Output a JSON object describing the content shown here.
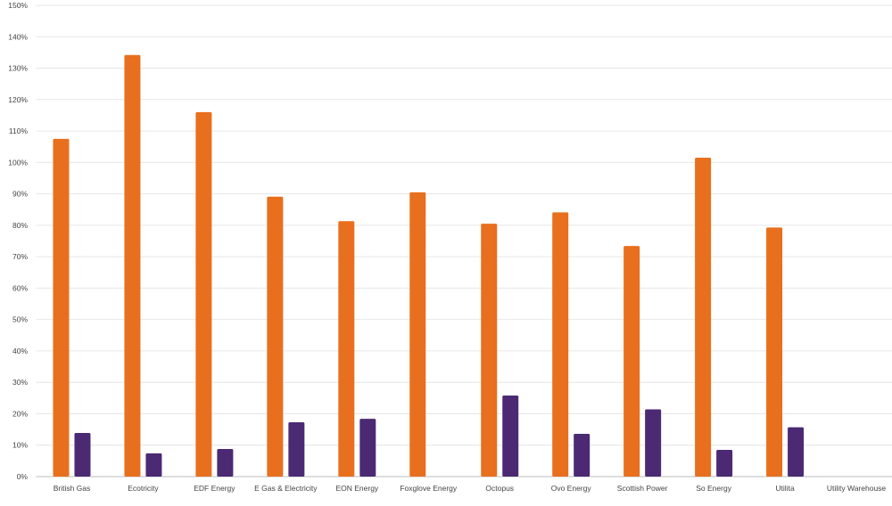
{
  "chart_data": {
    "type": "bar",
    "title": "",
    "xlabel": "",
    "ylabel": "",
    "ylim": [
      0,
      150
    ],
    "y_tick_labels": [
      "0%",
      "10%",
      "20%",
      "30%",
      "40%",
      "50%",
      "60%",
      "70%",
      "80%",
      "90%",
      "100%",
      "110%",
      "120%",
      "130%",
      "140%",
      "150%"
    ],
    "y_ticks": [
      0,
      10,
      20,
      30,
      40,
      50,
      60,
      70,
      80,
      90,
      100,
      110,
      120,
      130,
      140,
      150
    ],
    "grid": true,
    "legend": "none",
    "categories": [
      "British Gas",
      "Ecotricity",
      "EDF Energy",
      "E Gas & Electricity",
      "EON Energy",
      "Foxglove Energy",
      "Octopus",
      "Ovo Energy",
      "Scottish Power",
      "So Energy",
      "Utilita",
      "Utility Warehouse"
    ],
    "series": [
      {
        "color": "#e86f1e",
        "values": [
          107.5,
          134.2,
          116.0,
          89.1,
          81.3,
          90.5,
          80.5,
          84.1,
          73.4,
          101.5,
          79.3,
          null
        ]
      },
      {
        "color": "#4b2a73",
        "values": [
          13.9,
          7.4,
          8.8,
          17.3,
          18.4,
          null,
          25.8,
          13.6,
          21.4,
          8.5,
          15.7,
          null
        ]
      }
    ]
  }
}
